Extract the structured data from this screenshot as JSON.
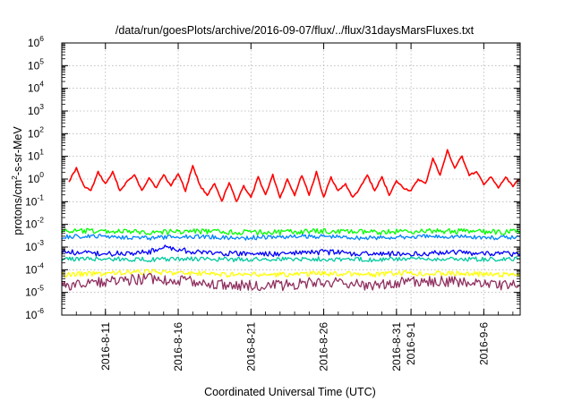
{
  "chart_data": {
    "type": "line",
    "title": "/data/run/goesPlots/archive/2016-09-07/flux/../flux/31daysMarsFluxes.txt",
    "xlabel": "Coordinated Universal Time (UTC)",
    "ylabel": {
      "prefix": "protons/cm",
      "sup": "2",
      "suffix": "-s-sr-MeV"
    },
    "y_scale": "log",
    "ylim": [
      1e-06,
      1000000.0
    ],
    "y_ticks": [
      {
        "base": "10",
        "exp": "-6"
      },
      {
        "base": "10",
        "exp": "-5"
      },
      {
        "base": "10",
        "exp": "-4"
      },
      {
        "base": "10",
        "exp": "-3"
      },
      {
        "base": "10",
        "exp": "-2"
      },
      {
        "base": "10",
        "exp": "-1"
      },
      {
        "base": "10",
        "exp": "0"
      },
      {
        "base": "10",
        "exp": "1"
      },
      {
        "base": "10",
        "exp": "2"
      },
      {
        "base": "10",
        "exp": "3"
      },
      {
        "base": "10",
        "exp": "4"
      },
      {
        "base": "10",
        "exp": "5"
      },
      {
        "base": "10",
        "exp": "6"
      }
    ],
    "xlim": [
      "2016-08-08T00:00",
      "2016-09-08T12:00"
    ],
    "x_ticks": [
      {
        "label": "2016-8-11",
        "date": "2016-08-11"
      },
      {
        "label": "2016-8-16",
        "date": "2016-08-16"
      },
      {
        "label": "2016-8-21",
        "date": "2016-08-21"
      },
      {
        "label": "2016-8-26",
        "date": "2016-08-26"
      },
      {
        "label": "2016-8-31",
        "date": "2016-08-31"
      },
      {
        "label": "2016-9-1",
        "date": "2016-09-01"
      },
      {
        "label": "2016-9-6",
        "date": "2016-09-06"
      }
    ],
    "grid": true,
    "legend": "none",
    "series": [
      {
        "color": "#ff0000",
        "x": [
          "2016-08-08T12:00",
          "2016-08-09T00:00",
          "2016-08-09T12:00",
          "2016-08-10T00:00",
          "2016-08-10T12:00",
          "2016-08-11T00:00",
          "2016-08-11T12:00",
          "2016-08-12T00:00",
          "2016-08-12T12:00",
          "2016-08-13T00:00",
          "2016-08-13T12:00",
          "2016-08-14T00:00",
          "2016-08-14T12:00",
          "2016-08-15T00:00",
          "2016-08-15T12:00",
          "2016-08-16T00:00",
          "2016-08-16T12:00",
          "2016-08-17T00:00",
          "2016-08-17T12:00",
          "2016-08-18T00:00",
          "2016-08-18T12:00",
          "2016-08-19T00:00",
          "2016-08-19T12:00",
          "2016-08-20T00:00",
          "2016-08-20T12:00",
          "2016-08-21T00:00",
          "2016-08-21T12:00",
          "2016-08-22T00:00",
          "2016-08-22T12:00",
          "2016-08-23T00:00",
          "2016-08-23T12:00",
          "2016-08-24T00:00",
          "2016-08-24T12:00",
          "2016-08-25T00:00",
          "2016-08-25T12:00",
          "2016-08-26T00:00",
          "2016-08-26T12:00",
          "2016-08-27T00:00",
          "2016-08-27T12:00",
          "2016-08-28T00:00",
          "2016-08-28T12:00",
          "2016-08-29T00:00",
          "2016-08-29T12:00",
          "2016-08-30T00:00",
          "2016-08-30T12:00",
          "2016-08-31T00:00",
          "2016-08-31T12:00",
          "2016-09-01T00:00",
          "2016-09-01T12:00",
          "2016-09-02T00:00",
          "2016-09-02T12:00",
          "2016-09-03T00:00",
          "2016-09-03T12:00",
          "2016-09-04T00:00",
          "2016-09-04T12:00",
          "2016-09-05T00:00",
          "2016-09-05T12:00",
          "2016-09-06T00:00",
          "2016-09-06T12:00",
          "2016-09-07T00:00",
          "2016-09-07T12:00",
          "2016-09-08T00:00",
          "2016-09-08T12:00"
        ],
        "y": [
          0.8,
          3,
          0.5,
          0.3,
          2,
          0.6,
          2,
          0.3,
          0.8,
          1.5,
          0.3,
          1.2,
          0.4,
          1.6,
          0.5,
          1.8,
          0.3,
          4,
          0.5,
          0.2,
          0.6,
          0.1,
          0.7,
          0.1,
          0.5,
          0.15,
          1.2,
          0.2,
          1.5,
          0.15,
          1,
          0.2,
          1.5,
          0.2,
          2,
          0.15,
          1.2,
          0.3,
          0.6,
          0.15,
          0.4,
          1.5,
          0.3,
          1.2,
          0.2,
          0.8,
          0.4,
          0.3,
          1,
          0.6,
          8,
          1.5,
          18,
          3,
          10,
          1.5,
          2,
          0.6,
          1.2,
          0.4,
          1.2,
          0.5,
          1
        ]
      },
      {
        "color": "#00ff00",
        "x": [
          "2016-08-08T00:00",
          "2016-08-11T00:00",
          "2016-08-14T00:00",
          "2016-08-17T00:00",
          "2016-08-20T00:00",
          "2016-08-23T00:00",
          "2016-08-26T00:00",
          "2016-08-29T00:00",
          "2016-09-01T00:00",
          "2016-09-04T00:00",
          "2016-09-07T00:00",
          "2016-09-08T12:00"
        ],
        "y": [
          0.005,
          0.005,
          0.0045,
          0.005,
          0.0045,
          0.0045,
          0.005,
          0.0045,
          0.005,
          0.005,
          0.0045,
          0.005
        ]
      },
      {
        "color": "#0080ff",
        "x": [
          "2016-08-08T00:00",
          "2016-08-11T00:00",
          "2016-08-14T00:00",
          "2016-08-17T00:00",
          "2016-08-20T00:00",
          "2016-08-23T00:00",
          "2016-08-26T00:00",
          "2016-08-29T00:00",
          "2016-09-01T00:00",
          "2016-09-04T00:00",
          "2016-09-07T00:00",
          "2016-09-08T12:00"
        ],
        "y": [
          0.0028,
          0.003,
          0.0025,
          0.003,
          0.0025,
          0.0028,
          0.003,
          0.0025,
          0.0028,
          0.003,
          0.0025,
          0.0028
        ]
      },
      {
        "color": "#0000ff",
        "x": [
          "2016-08-08T00:00",
          "2016-08-11T00:00",
          "2016-08-14T00:00",
          "2016-08-15T00:00",
          "2016-08-17T00:00",
          "2016-08-20T00:00",
          "2016-08-23T00:00",
          "2016-08-26T00:00",
          "2016-08-29T00:00",
          "2016-09-01T00:00",
          "2016-09-04T00:00",
          "2016-09-07T00:00",
          "2016-09-08T12:00"
        ],
        "y": [
          0.0006,
          0.0005,
          0.0006,
          0.001,
          0.0006,
          0.0005,
          0.0005,
          0.0006,
          0.0005,
          0.0005,
          0.0006,
          0.0005,
          0.0005
        ]
      },
      {
        "color": "#00c8a0",
        "x": [
          "2016-08-08T00:00",
          "2016-08-11T00:00",
          "2016-08-14T00:00",
          "2016-08-17T00:00",
          "2016-08-20T00:00",
          "2016-08-23T00:00",
          "2016-08-26T00:00",
          "2016-08-29T00:00",
          "2016-09-01T00:00",
          "2016-09-04T00:00",
          "2016-09-07T00:00",
          "2016-09-08T12:00"
        ],
        "y": [
          0.0003,
          0.0003,
          0.00028,
          0.0003,
          0.00028,
          0.0003,
          0.0003,
          0.00028,
          0.0003,
          0.0003,
          0.00028,
          0.0003
        ]
      },
      {
        "color": "#ffff00",
        "x": [
          "2016-08-08T00:00",
          "2016-08-11T00:00",
          "2016-08-14T00:00",
          "2016-08-17T00:00",
          "2016-08-20T00:00",
          "2016-08-23T00:00",
          "2016-08-26T00:00",
          "2016-08-29T00:00",
          "2016-09-01T00:00",
          "2016-09-04T00:00",
          "2016-09-07T00:00",
          "2016-09-08T12:00"
        ],
        "y": [
          6e-05,
          7e-05,
          8e-05,
          7e-05,
          6e-05,
          6e-05,
          7e-05,
          6e-05,
          7e-05,
          7e-05,
          6e-05,
          7e-05
        ]
      },
      {
        "color": "#903060",
        "x": [
          "2016-08-08T00:00",
          "2016-08-11T00:00",
          "2016-08-14T00:00",
          "2016-08-17T00:00",
          "2016-08-20T00:00",
          "2016-08-23T00:00",
          "2016-08-26T00:00",
          "2016-08-29T00:00",
          "2016-09-01T00:00",
          "2016-09-04T00:00",
          "2016-09-07T00:00",
          "2016-09-08T12:00"
        ],
        "y": [
          2e-05,
          3e-05,
          4e-05,
          3e-05,
          2e-05,
          2e-05,
          3e-05,
          2e-05,
          3e-05,
          3e-05,
          2e-05,
          2e-05
        ]
      }
    ]
  }
}
